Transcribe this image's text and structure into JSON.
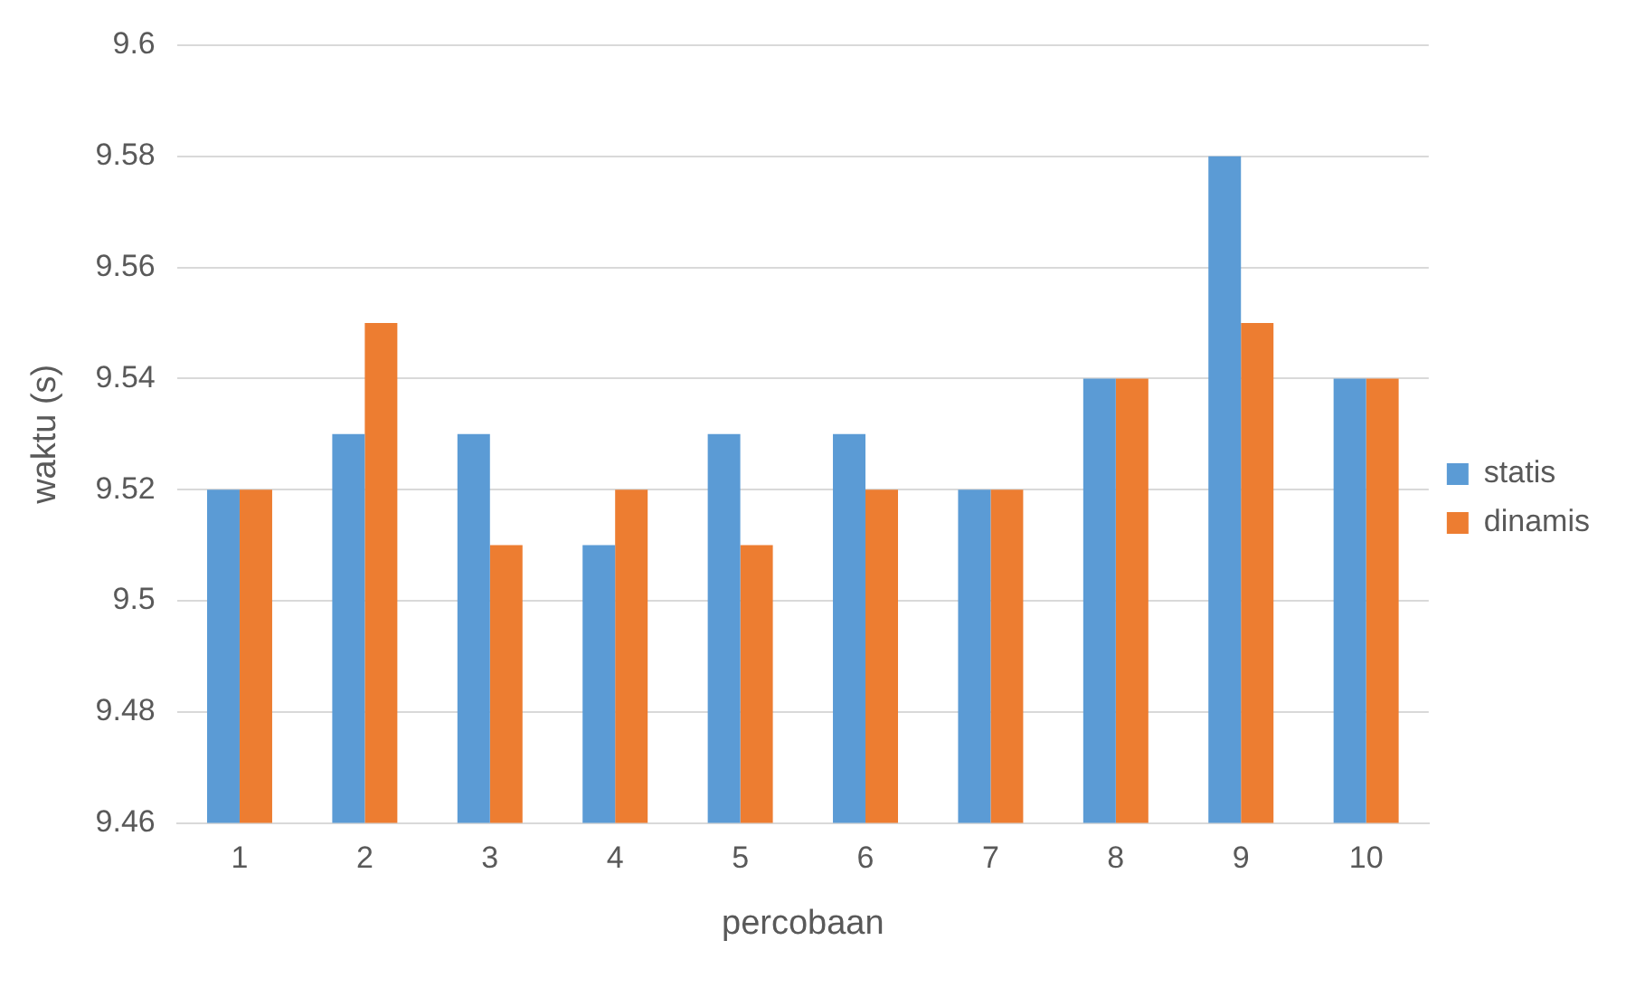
{
  "chart_data": {
    "type": "bar",
    "xlabel": "percobaan",
    "ylabel": "waktu (s)",
    "categories": [
      "1",
      "2",
      "3",
      "4",
      "5",
      "6",
      "7",
      "8",
      "9",
      "10"
    ],
    "series": [
      {
        "name": "statis",
        "color": "#5b9bd5",
        "values": [
          9.52,
          9.53,
          9.53,
          9.51,
          9.53,
          9.53,
          9.52,
          9.54,
          9.58,
          9.54
        ]
      },
      {
        "name": "dinamis",
        "color": "#ed7d31",
        "values": [
          9.52,
          9.55,
          9.51,
          9.52,
          9.51,
          9.52,
          9.52,
          9.54,
          9.55,
          9.54
        ]
      }
    ],
    "ylim": [
      9.46,
      9.6
    ],
    "yticks": [
      9.46,
      9.48,
      9.5,
      9.52,
      9.54,
      9.56,
      9.58,
      9.6
    ],
    "grid": "y",
    "legend": "right"
  }
}
